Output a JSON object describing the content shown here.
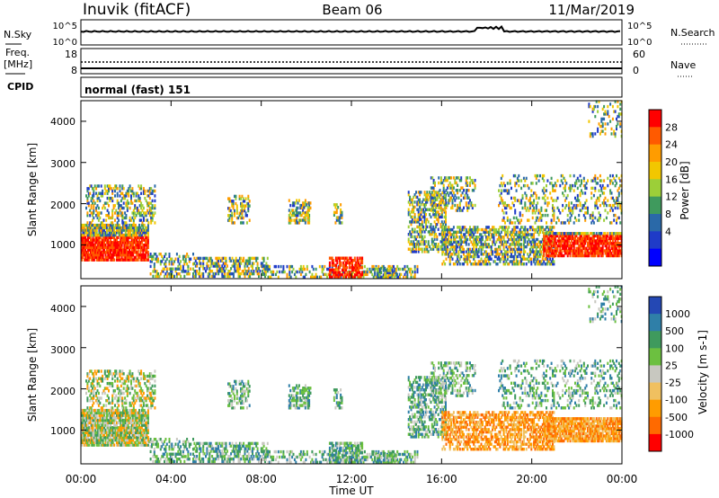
{
  "header": {
    "station": "Inuvik (fitACF)",
    "beam": "Beam 06",
    "date": "11/Mar/2019"
  },
  "sky_panel": {
    "label_left": "N.Sky",
    "left_ticks": [
      "10^5",
      "10^0"
    ],
    "right_ticks": [
      "10^5",
      "10^0"
    ],
    "label_right": "N.Search"
  },
  "freq_panel": {
    "label_left_1": "Freq.",
    "label_left_2": "[MHz]",
    "left_ticks": [
      "18",
      "8"
    ],
    "right_ticks": [
      "60",
      "0"
    ],
    "label_right": "Nave"
  },
  "cpid": {
    "label": "CPID",
    "value": "normal (fast) 151"
  },
  "chart_data": [
    {
      "type": "heatmap",
      "parameter": "Power",
      "ylabel": "Slant Range [km]",
      "ylim": [
        180,
        4500
      ],
      "yticks": [
        "4000",
        "3000",
        "2000",
        "1000"
      ],
      "colorbar_label": "Power [dB]",
      "colorbar_ticks": [
        "28",
        "24",
        "20",
        "16",
        "12",
        "8",
        "4"
      ],
      "colorbar_colors": [
        "#ff0000",
        "#ff5a00",
        "#ff9c00",
        "#f2c700",
        "#9ccf38",
        "#3f9a5d",
        "#2a69a8",
        "#1f3bc8",
        "#0000ff"
      ]
    },
    {
      "type": "heatmap",
      "parameter": "Velocity",
      "ylabel": "Slant Range [km]",
      "ylim": [
        180,
        4500
      ],
      "yticks": [
        "4000",
        "3000",
        "2000",
        "1000"
      ],
      "colorbar_label": "Velocity [m s-1]",
      "colorbar_ticks": [
        "1000",
        "500",
        "100",
        "25",
        "-25",
        "-100",
        "-500",
        "-1000"
      ],
      "colorbar_colors": [
        "#2448b4",
        "#2f7fa8",
        "#3f9a5d",
        "#6cc040",
        "#c8c8c0",
        "#f0c060",
        "#ff9c00",
        "#ff6a00",
        "#ff0000"
      ]
    }
  ],
  "time_axis": {
    "ticks": [
      "00:00",
      "04:00",
      "08:00",
      "12:00",
      "16:00",
      "20:00",
      "00:00"
    ],
    "label": "Time UT"
  }
}
